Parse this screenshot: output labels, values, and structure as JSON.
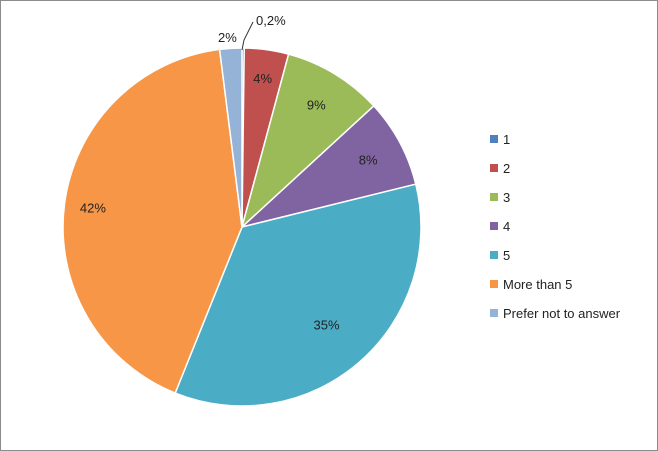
{
  "chart_data": {
    "type": "pie",
    "title": "",
    "legend_position": "right",
    "slices": [
      {
        "name": "1",
        "value": 0.2,
        "label": "0,2%",
        "color": "#4F81BD"
      },
      {
        "name": "2",
        "value": 4,
        "label": "4%",
        "color": "#C0504D"
      },
      {
        "name": "3",
        "value": 9,
        "label": "9%",
        "color": "#9BBB59"
      },
      {
        "name": "4",
        "value": 8,
        "label": "8%",
        "color": "#8064A2"
      },
      {
        "name": "5",
        "value": 35,
        "label": "35%",
        "color": "#4BACC6"
      },
      {
        "name": "More than 5",
        "value": 42,
        "label": "42%",
        "color": "#F79646"
      },
      {
        "name": "Prefer not to answer",
        "value": 2,
        "label": "2%",
        "color": "#95B3D7"
      }
    ]
  }
}
